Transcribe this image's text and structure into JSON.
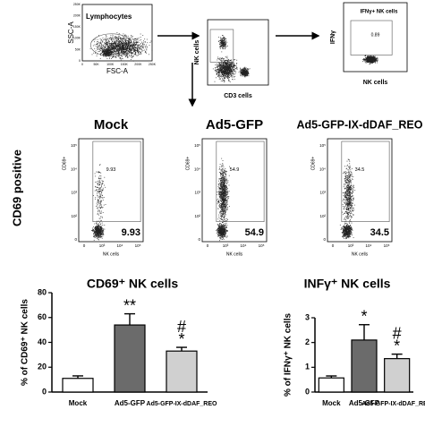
{
  "flow_top": [
    {
      "gate_label": "Lymphocytes",
      "y_label": "SSC-A",
      "x_label": "FSC-A",
      "xticks": [
        "0",
        "50K",
        "100K",
        "150K",
        "200K",
        "250K"
      ],
      "yticks": [
        "0",
        "50K",
        "100K",
        "150K",
        "200K",
        "250K"
      ]
    },
    {
      "y_label": "NK cells",
      "x_label": "CD3 cells"
    },
    {
      "title": "IFNγ+ NK cells",
      "y_label": "IFNγ",
      "x_label": "NK cells",
      "gate_value": "0.89"
    }
  ],
  "flow_cd69": {
    "side_label": "CD69 positive",
    "y_label": "CD69+",
    "x_label": "NK cells",
    "yticks": [
      "10⁵",
      "10⁴",
      "10³",
      "10²",
      "0"
    ],
    "xticks": [
      "0",
      "10³",
      "10⁴",
      "10⁵"
    ],
    "plots": [
      {
        "title": "Mock",
        "gate_value": "9.93"
      },
      {
        "title": "Ad5-GFP",
        "gate_value": "54.9"
      },
      {
        "title": "Ad5-GFP-IX-dDAF_REO",
        "gate_value": "34.5"
      }
    ]
  },
  "chart_data": [
    {
      "type": "bar",
      "title": "CD69⁺ NK cells",
      "y_label": "% of CD69⁺ NK cells",
      "categories": [
        "Mock",
        "Ad5-GFP",
        "Ad5-GFP-IX-dDAF_REO"
      ],
      "values": [
        11,
        54,
        33
      ],
      "errors": [
        2,
        9,
        3
      ],
      "colors": [
        "#ffffff",
        "#6b6b6b",
        "#d0d0d0"
      ],
      "annotations": [
        null,
        [
          "**"
        ],
        [
          "#",
          "*"
        ]
      ],
      "ylim": [
        0,
        80
      ],
      "yticks": [
        0,
        20,
        40,
        60,
        80
      ]
    },
    {
      "type": "bar",
      "title": "INFγ⁺ NK cells",
      "y_label": "% of IFNγ⁺ NK cells",
      "categories": [
        "Mock",
        "Ad5-GFP",
        "Ad5-GFP-IX-dDAF_REO"
      ],
      "values": [
        0.57,
        2.1,
        1.35
      ],
      "errors": [
        0.08,
        0.62,
        0.18
      ],
      "colors": [
        "#ffffff",
        "#6b6b6b",
        "#d0d0d0"
      ],
      "annotations": [
        null,
        [
          "*"
        ],
        [
          "#",
          "*"
        ]
      ],
      "ylim": [
        0,
        3
      ],
      "yticks": [
        0,
        1,
        2,
        3
      ]
    }
  ]
}
